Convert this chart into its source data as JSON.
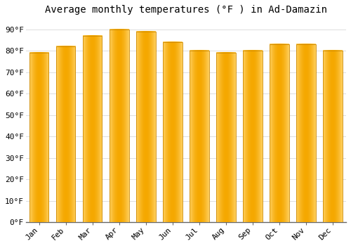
{
  "title": "Average monthly temperatures (°F ) in Ad-Damazin",
  "months": [
    "Jan",
    "Feb",
    "Mar",
    "Apr",
    "May",
    "Jun",
    "Jul",
    "Aug",
    "Sep",
    "Oct",
    "Nov",
    "Dec"
  ],
  "values": [
    79,
    82,
    87,
    90,
    89,
    84,
    80,
    79,
    80,
    83,
    83,
    80
  ],
  "ylim": [
    0,
    95
  ],
  "yticks": [
    0,
    10,
    20,
    30,
    40,
    50,
    60,
    70,
    80,
    90
  ],
  "ytick_labels": [
    "0°F",
    "10°F",
    "20°F",
    "30°F",
    "40°F",
    "50°F",
    "60°F",
    "70°F",
    "80°F",
    "90°F"
  ],
  "bar_color_center": "#F5A800",
  "bar_color_edge": "#FFD060",
  "bar_border_color": "#CC8800",
  "background_color": "#FFFFFF",
  "grid_color": "#DDDDDD",
  "title_fontsize": 10,
  "tick_fontsize": 8,
  "bar_width": 0.72
}
